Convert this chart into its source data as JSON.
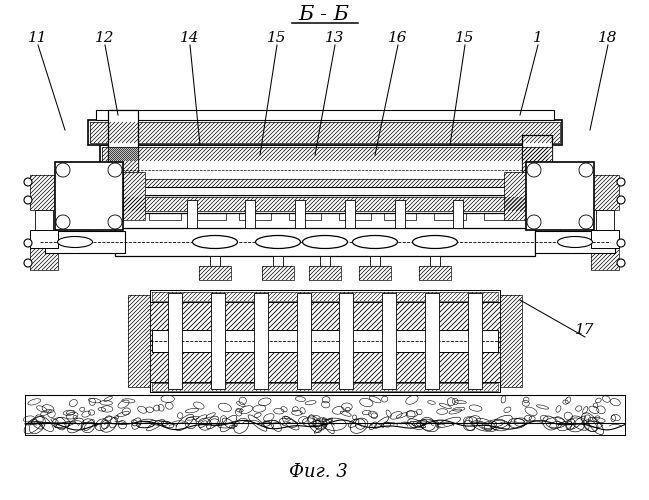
{
  "title": "Б - Б",
  "fig_label": "Фиг. 3",
  "bg_color": "#ffffff",
  "line_color": "#000000"
}
